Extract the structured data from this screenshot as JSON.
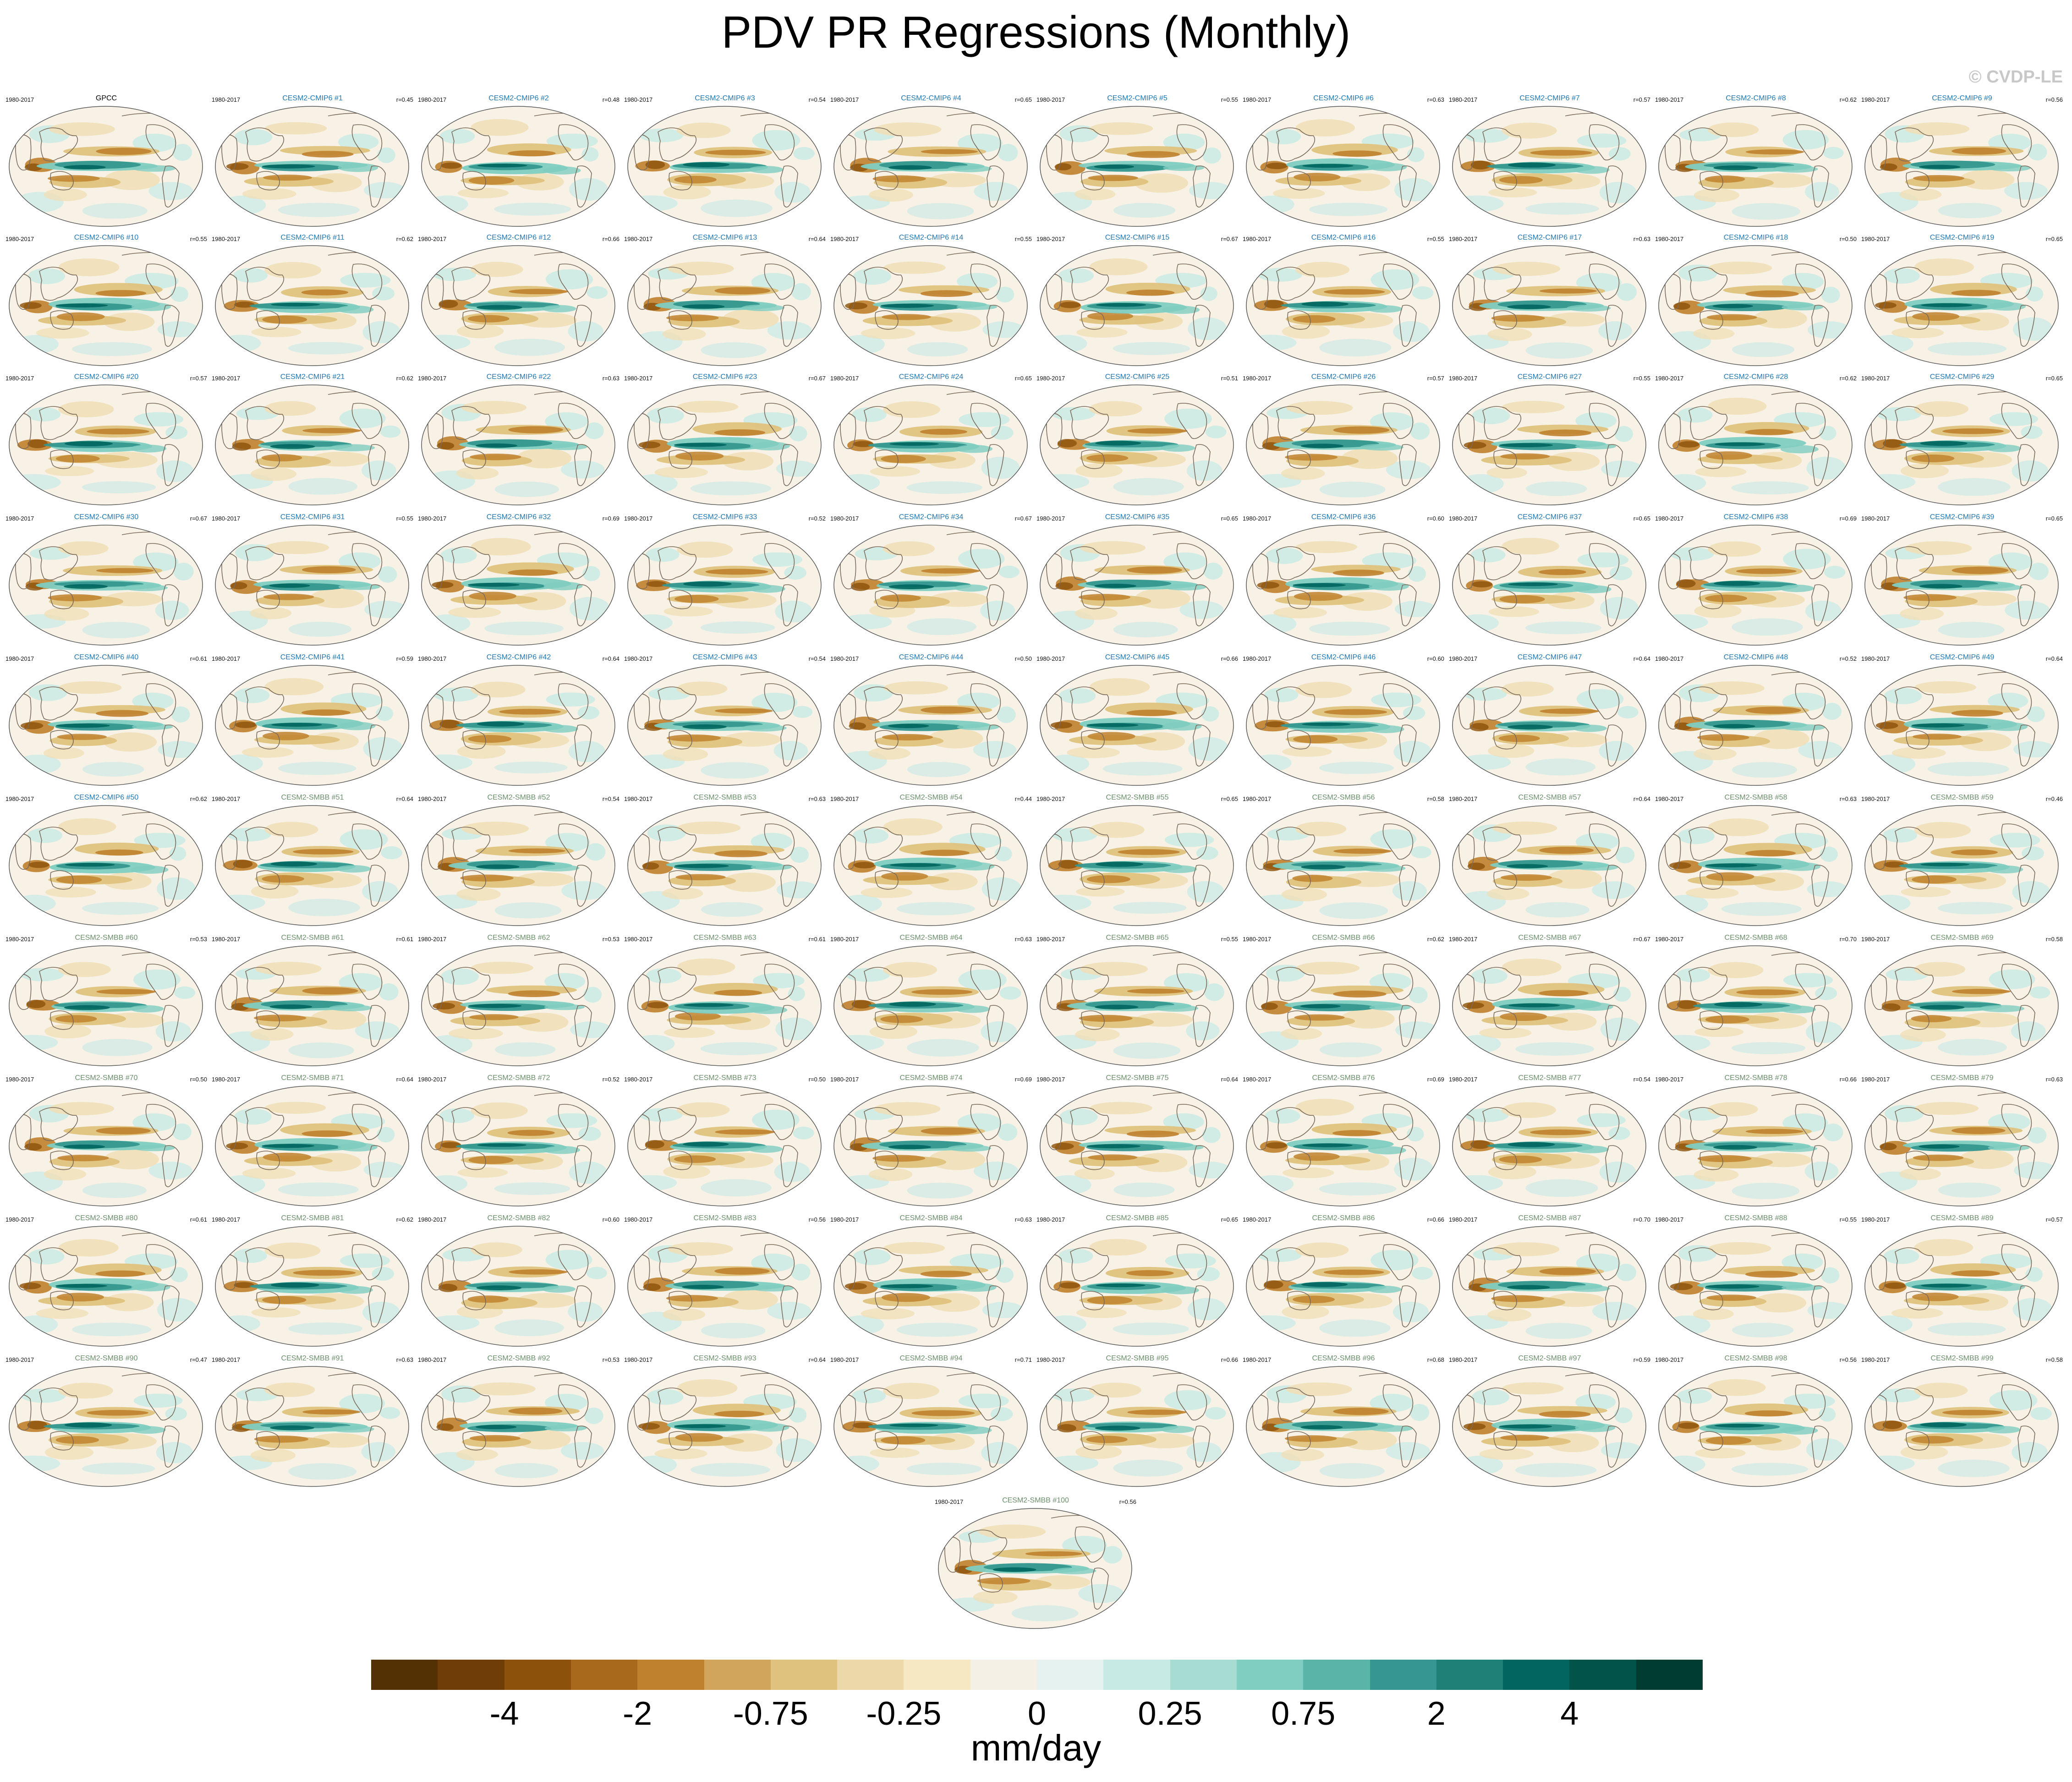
{
  "title": "PDV PR Regressions (Monthly)",
  "watermark": "© CVDP-LE",
  "chart_data": {
    "type": "map-panels",
    "title": "PDV PR Regressions (Monthly)",
    "variable": "PR regression on PDV",
    "colorbar": {
      "units": "mm/day",
      "tick_labels": [
        "-4",
        "-2",
        "-0.75",
        "-0.25",
        "0",
        "0.25",
        "0.75",
        "2",
        "4"
      ],
      "colors": [
        "#543005",
        "#6f3e08",
        "#8c510a",
        "#a8691c",
        "#bf812d",
        "#d1a55c",
        "#dfc27d",
        "#ecd9a9",
        "#f6e8c3",
        "#f5f0e6",
        "#e6f2ef",
        "#c7eae5",
        "#a6dcd2",
        "#80cdc1",
        "#5ab4a8",
        "#35978f",
        "#1f8077",
        "#01665e",
        "#02544b",
        "#003c30"
      ]
    },
    "panel_color_colors": {
      "observation": "#000000",
      "CESM2-CMIP6": "#1f77b4",
      "CESM2-SMBB": "#6b8e6b"
    },
    "panels": [
      {
        "title": "GPCC",
        "group": "observation",
        "period": "1980-2017",
        "r": ""
      },
      {
        "title": "CESM2-CMIP6 #1",
        "group": "CESM2-CMIP6",
        "period": "1980-2017",
        "r": "r=0.45"
      },
      {
        "title": "CESM2-CMIP6 #2",
        "group": "CESM2-CMIP6",
        "period": "1980-2017",
        "r": "r=0.48"
      },
      {
        "title": "CESM2-CMIP6 #3",
        "group": "CESM2-CMIP6",
        "period": "1980-2017",
        "r": "r=0.54"
      },
      {
        "title": "CESM2-CMIP6 #4",
        "group": "CESM2-CMIP6",
        "period": "1980-2017",
        "r": "r=0.65"
      },
      {
        "title": "CESM2-CMIP6 #5",
        "group": "CESM2-CMIP6",
        "period": "1980-2017",
        "r": "r=0.55"
      },
      {
        "title": "CESM2-CMIP6 #6",
        "group": "CESM2-CMIP6",
        "period": "1980-2017",
        "r": "r=0.63"
      },
      {
        "title": "CESM2-CMIP6 #7",
        "group": "CESM2-CMIP6",
        "period": "1980-2017",
        "r": "r=0.57"
      },
      {
        "title": "CESM2-CMIP6 #8",
        "group": "CESM2-CMIP6",
        "period": "1980-2017",
        "r": "r=0.62"
      },
      {
        "title": "CESM2-CMIP6 #9",
        "group": "CESM2-CMIP6",
        "period": "1980-2017",
        "r": "r=0.56"
      },
      {
        "title": "CESM2-CMIP6 #10",
        "group": "CESM2-CMIP6",
        "period": "1980-2017",
        "r": "r=0.55"
      },
      {
        "title": "CESM2-CMIP6 #11",
        "group": "CESM2-CMIP6",
        "period": "1980-2017",
        "r": "r=0.62"
      },
      {
        "title": "CESM2-CMIP6 #12",
        "group": "CESM2-CMIP6",
        "period": "1980-2017",
        "r": "r=0.66"
      },
      {
        "title": "CESM2-CMIP6 #13",
        "group": "CESM2-CMIP6",
        "period": "1980-2017",
        "r": "r=0.64"
      },
      {
        "title": "CESM2-CMIP6 #14",
        "group": "CESM2-CMIP6",
        "period": "1980-2017",
        "r": "r=0.55"
      },
      {
        "title": "CESM2-CMIP6 #15",
        "group": "CESM2-CMIP6",
        "period": "1980-2017",
        "r": "r=0.67"
      },
      {
        "title": "CESM2-CMIP6 #16",
        "group": "CESM2-CMIP6",
        "period": "1980-2017",
        "r": "r=0.55"
      },
      {
        "title": "CESM2-CMIP6 #17",
        "group": "CESM2-CMIP6",
        "period": "1980-2017",
        "r": "r=0.63"
      },
      {
        "title": "CESM2-CMIP6 #18",
        "group": "CESM2-CMIP6",
        "period": "1980-2017",
        "r": "r=0.50"
      },
      {
        "title": "CESM2-CMIP6 #19",
        "group": "CESM2-CMIP6",
        "period": "1980-2017",
        "r": "r=0.65"
      },
      {
        "title": "CESM2-CMIP6 #20",
        "group": "CESM2-CMIP6",
        "period": "1980-2017",
        "r": "r=0.57"
      },
      {
        "title": "CESM2-CMIP6 #21",
        "group": "CESM2-CMIP6",
        "period": "1980-2017",
        "r": "r=0.62"
      },
      {
        "title": "CESM2-CMIP6 #22",
        "group": "CESM2-CMIP6",
        "period": "1980-2017",
        "r": "r=0.63"
      },
      {
        "title": "CESM2-CMIP6 #23",
        "group": "CESM2-CMIP6",
        "period": "1980-2017",
        "r": "r=0.67"
      },
      {
        "title": "CESM2-CMIP6 #24",
        "group": "CESM2-CMIP6",
        "period": "1980-2017",
        "r": "r=0.65"
      },
      {
        "title": "CESM2-CMIP6 #25",
        "group": "CESM2-CMIP6",
        "period": "1980-2017",
        "r": "r=0.51"
      },
      {
        "title": "CESM2-CMIP6 #26",
        "group": "CESM2-CMIP6",
        "period": "1980-2017",
        "r": "r=0.57"
      },
      {
        "title": "CESM2-CMIP6 #27",
        "group": "CESM2-CMIP6",
        "period": "1980-2017",
        "r": "r=0.55"
      },
      {
        "title": "CESM2-CMIP6 #28",
        "group": "CESM2-CMIP6",
        "period": "1980-2017",
        "r": "r=0.62"
      },
      {
        "title": "CESM2-CMIP6 #29",
        "group": "CESM2-CMIP6",
        "period": "1980-2017",
        "r": "r=0.65"
      },
      {
        "title": "CESM2-CMIP6 #30",
        "group": "CESM2-CMIP6",
        "period": "1980-2017",
        "r": "r=0.67"
      },
      {
        "title": "CESM2-CMIP6 #31",
        "group": "CESM2-CMIP6",
        "period": "1980-2017",
        "r": "r=0.55"
      },
      {
        "title": "CESM2-CMIP6 #32",
        "group": "CESM2-CMIP6",
        "period": "1980-2017",
        "r": "r=0.69"
      },
      {
        "title": "CESM2-CMIP6 #33",
        "group": "CESM2-CMIP6",
        "period": "1980-2017",
        "r": "r=0.52"
      },
      {
        "title": "CESM2-CMIP6 #34",
        "group": "CESM2-CMIP6",
        "period": "1980-2017",
        "r": "r=0.67"
      },
      {
        "title": "CESM2-CMIP6 #35",
        "group": "CESM2-CMIP6",
        "period": "1980-2017",
        "r": "r=0.65"
      },
      {
        "title": "CESM2-CMIP6 #36",
        "group": "CESM2-CMIP6",
        "period": "1980-2017",
        "r": "r=0.60"
      },
      {
        "title": "CESM2-CMIP6 #37",
        "group": "CESM2-CMIP6",
        "period": "1980-2017",
        "r": "r=0.65"
      },
      {
        "title": "CESM2-CMIP6 #38",
        "group": "CESM2-CMIP6",
        "period": "1980-2017",
        "r": "r=0.69"
      },
      {
        "title": "CESM2-CMIP6 #39",
        "group": "CESM2-CMIP6",
        "period": "1980-2017",
        "r": "r=0.65"
      },
      {
        "title": "CESM2-CMIP6 #40",
        "group": "CESM2-CMIP6",
        "period": "1980-2017",
        "r": "r=0.61"
      },
      {
        "title": "CESM2-CMIP6 #41",
        "group": "CESM2-CMIP6",
        "period": "1980-2017",
        "r": "r=0.59"
      },
      {
        "title": "CESM2-CMIP6 #42",
        "group": "CESM2-CMIP6",
        "period": "1980-2017",
        "r": "r=0.64"
      },
      {
        "title": "CESM2-CMIP6 #43",
        "group": "CESM2-CMIP6",
        "period": "1980-2017",
        "r": "r=0.54"
      },
      {
        "title": "CESM2-CMIP6 #44",
        "group": "CESM2-CMIP6",
        "period": "1980-2017",
        "r": "r=0.50"
      },
      {
        "title": "CESM2-CMIP6 #45",
        "group": "CESM2-CMIP6",
        "period": "1980-2017",
        "r": "r=0.66"
      },
      {
        "title": "CESM2-CMIP6 #46",
        "group": "CESM2-CMIP6",
        "period": "1980-2017",
        "r": "r=0.60"
      },
      {
        "title": "CESM2-CMIP6 #47",
        "group": "CESM2-CMIP6",
        "period": "1980-2017",
        "r": "r=0.64"
      },
      {
        "title": "CESM2-CMIP6 #48",
        "group": "CESM2-CMIP6",
        "period": "1980-2017",
        "r": "r=0.52"
      },
      {
        "title": "CESM2-CMIP6 #49",
        "group": "CESM2-CMIP6",
        "period": "1980-2017",
        "r": "r=0.64"
      },
      {
        "title": "CESM2-CMIP6 #50",
        "group": "CESM2-CMIP6",
        "period": "1980-2017",
        "r": "r=0.62"
      },
      {
        "title": "CESM2-SMBB #51",
        "group": "CESM2-SMBB",
        "period": "1980-2017",
        "r": "r=0.64"
      },
      {
        "title": "CESM2-SMBB #52",
        "group": "CESM2-SMBB",
        "period": "1980-2017",
        "r": "r=0.54"
      },
      {
        "title": "CESM2-SMBB #53",
        "group": "CESM2-SMBB",
        "period": "1980-2017",
        "r": "r=0.63"
      },
      {
        "title": "CESM2-SMBB #54",
        "group": "CESM2-SMBB",
        "period": "1980-2017",
        "r": "r=0.44"
      },
      {
        "title": "CESM2-SMBB #55",
        "group": "CESM2-SMBB",
        "period": "1980-2017",
        "r": "r=0.65"
      },
      {
        "title": "CESM2-SMBB #56",
        "group": "CESM2-SMBB",
        "period": "1980-2017",
        "r": "r=0.58"
      },
      {
        "title": "CESM2-SMBB #57",
        "group": "CESM2-SMBB",
        "period": "1980-2017",
        "r": "r=0.64"
      },
      {
        "title": "CESM2-SMBB #58",
        "group": "CESM2-SMBB",
        "period": "1980-2017",
        "r": "r=0.63"
      },
      {
        "title": "CESM2-SMBB #59",
        "group": "CESM2-SMBB",
        "period": "1980-2017",
        "r": "r=0.46"
      },
      {
        "title": "CESM2-SMBB #60",
        "group": "CESM2-SMBB",
        "period": "1980-2017",
        "r": "r=0.53"
      },
      {
        "title": "CESM2-SMBB #61",
        "group": "CESM2-SMBB",
        "period": "1980-2017",
        "r": "r=0.61"
      },
      {
        "title": "CESM2-SMBB #62",
        "group": "CESM2-SMBB",
        "period": "1980-2017",
        "r": "r=0.53"
      },
      {
        "title": "CESM2-SMBB #63",
        "group": "CESM2-SMBB",
        "period": "1980-2017",
        "r": "r=0.61"
      },
      {
        "title": "CESM2-SMBB #64",
        "group": "CESM2-SMBB",
        "period": "1980-2017",
        "r": "r=0.63"
      },
      {
        "title": "CESM2-SMBB #65",
        "group": "CESM2-SMBB",
        "period": "1980-2017",
        "r": "r=0.55"
      },
      {
        "title": "CESM2-SMBB #66",
        "group": "CESM2-SMBB",
        "period": "1980-2017",
        "r": "r=0.62"
      },
      {
        "title": "CESM2-SMBB #67",
        "group": "CESM2-SMBB",
        "period": "1980-2017",
        "r": "r=0.67"
      },
      {
        "title": "CESM2-SMBB #68",
        "group": "CESM2-SMBB",
        "period": "1980-2017",
        "r": "r=0.70"
      },
      {
        "title": "CESM2-SMBB #69",
        "group": "CESM2-SMBB",
        "period": "1980-2017",
        "r": "r=0.58"
      },
      {
        "title": "CESM2-SMBB #70",
        "group": "CESM2-SMBB",
        "period": "1980-2017",
        "r": "r=0.50"
      },
      {
        "title": "CESM2-SMBB #71",
        "group": "CESM2-SMBB",
        "period": "1980-2017",
        "r": "r=0.64"
      },
      {
        "title": "CESM2-SMBB #72",
        "group": "CESM2-SMBB",
        "period": "1980-2017",
        "r": "r=0.52"
      },
      {
        "title": "CESM2-SMBB #73",
        "group": "CESM2-SMBB",
        "period": "1980-2017",
        "r": "r=0.50"
      },
      {
        "title": "CESM2-SMBB #74",
        "group": "CESM2-SMBB",
        "period": "1980-2017",
        "r": "r=0.69"
      },
      {
        "title": "CESM2-SMBB #75",
        "group": "CESM2-SMBB",
        "period": "1980-2017",
        "r": "r=0.64"
      },
      {
        "title": "CESM2-SMBB #76",
        "group": "CESM2-SMBB",
        "period": "1980-2017",
        "r": "r=0.69"
      },
      {
        "title": "CESM2-SMBB #77",
        "group": "CESM2-SMBB",
        "period": "1980-2017",
        "r": "r=0.54"
      },
      {
        "title": "CESM2-SMBB #78",
        "group": "CESM2-SMBB",
        "period": "1980-2017",
        "r": "r=0.66"
      },
      {
        "title": "CESM2-SMBB #79",
        "group": "CESM2-SMBB",
        "period": "1980-2017",
        "r": "r=0.63"
      },
      {
        "title": "CESM2-SMBB #80",
        "group": "CESM2-SMBB",
        "period": "1980-2017",
        "r": "r=0.61"
      },
      {
        "title": "CESM2-SMBB #81",
        "group": "CESM2-SMBB",
        "period": "1980-2017",
        "r": "r=0.62"
      },
      {
        "title": "CESM2-SMBB #82",
        "group": "CESM2-SMBB",
        "period": "1980-2017",
        "r": "r=0.60"
      },
      {
        "title": "CESM2-SMBB #83",
        "group": "CESM2-SMBB",
        "period": "1980-2017",
        "r": "r=0.56"
      },
      {
        "title": "CESM2-SMBB #84",
        "group": "CESM2-SMBB",
        "period": "1980-2017",
        "r": "r=0.63"
      },
      {
        "title": "CESM2-SMBB #85",
        "group": "CESM2-SMBB",
        "period": "1980-2017",
        "r": "r=0.65"
      },
      {
        "title": "CESM2-SMBB #86",
        "group": "CESM2-SMBB",
        "period": "1980-2017",
        "r": "r=0.66"
      },
      {
        "title": "CESM2-SMBB #87",
        "group": "CESM2-SMBB",
        "period": "1980-2017",
        "r": "r=0.70"
      },
      {
        "title": "CESM2-SMBB #88",
        "group": "CESM2-SMBB",
        "period": "1980-2017",
        "r": "r=0.55"
      },
      {
        "title": "CESM2-SMBB #89",
        "group": "CESM2-SMBB",
        "period": "1980-2017",
        "r": "r=0.57"
      },
      {
        "title": "CESM2-SMBB #90",
        "group": "CESM2-SMBB",
        "period": "1980-2017",
        "r": "r=0.47"
      },
      {
        "title": "CESM2-SMBB #91",
        "group": "CESM2-SMBB",
        "period": "1980-2017",
        "r": "r=0.63"
      },
      {
        "title": "CESM2-SMBB #92",
        "group": "CESM2-SMBB",
        "period": "1980-2017",
        "r": "r=0.53"
      },
      {
        "title": "CESM2-SMBB #93",
        "group": "CESM2-SMBB",
        "period": "1980-2017",
        "r": "r=0.64"
      },
      {
        "title": "CESM2-SMBB #94",
        "group": "CESM2-SMBB",
        "period": "1980-2017",
        "r": "r=0.71"
      },
      {
        "title": "CESM2-SMBB #95",
        "group": "CESM2-SMBB",
        "period": "1980-2017",
        "r": "r=0.66"
      },
      {
        "title": "CESM2-SMBB #96",
        "group": "CESM2-SMBB",
        "period": "1980-2017",
        "r": "r=0.68"
      },
      {
        "title": "CESM2-SMBB #97",
        "group": "CESM2-SMBB",
        "period": "1980-2017",
        "r": "r=0.59"
      },
      {
        "title": "CESM2-SMBB #98",
        "group": "CESM2-SMBB",
        "period": "1980-2017",
        "r": "r=0.56"
      },
      {
        "title": "CESM2-SMBB #99",
        "group": "CESM2-SMBB",
        "period": "1980-2017",
        "r": "r=0.58"
      },
      {
        "title": "CESM2-SMBB #100",
        "group": "CESM2-SMBB",
        "period": "1980-2017",
        "r": "r=0.56"
      }
    ]
  }
}
